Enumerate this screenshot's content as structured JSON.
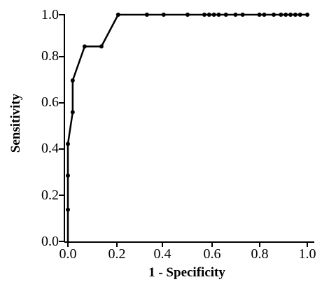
{
  "chart_data": {
    "type": "line",
    "title": "",
    "xlabel": "1 - Specificity",
    "ylabel": "Sensitivity",
    "xlim": [
      0,
      1
    ],
    "ylim": [
      0,
      1
    ],
    "xticks": [
      "0.0",
      "0.2",
      "0.4",
      "0.6",
      "0.8",
      "1.0"
    ],
    "yticks": [
      "0.0",
      "0.2",
      "0.4",
      "0.6",
      "0.8",
      "1.0"
    ],
    "grid": false,
    "legend": "none",
    "series": [
      {
        "x": [
          0.0,
          0.0,
          0.0,
          0.0,
          0.02,
          0.02,
          0.07,
          0.14,
          0.21,
          0.33,
          0.4,
          0.5,
          0.57,
          0.59,
          0.61,
          0.63,
          0.66,
          0.7,
          0.73,
          0.8,
          0.82,
          0.86,
          0.89,
          0.91,
          0.93,
          0.95,
          0.97,
          1.0
        ],
        "y": [
          0.0,
          0.14,
          0.29,
          0.43,
          0.57,
          0.71,
          0.86,
          0.86,
          1.0,
          1.0,
          1.0,
          1.0,
          1.0,
          1.0,
          1.0,
          1.0,
          1.0,
          1.0,
          1.0,
          1.0,
          1.0,
          1.0,
          1.0,
          1.0,
          1.0,
          1.0,
          1.0,
          1.0
        ]
      }
    ]
  }
}
